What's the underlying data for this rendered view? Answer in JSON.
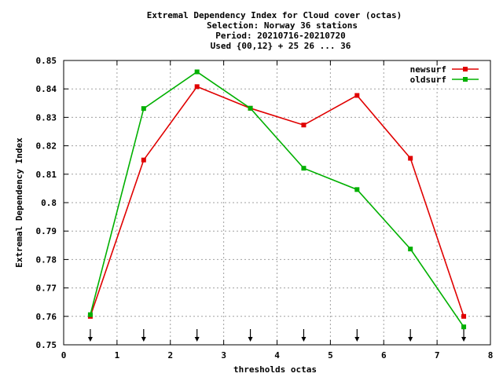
{
  "chart_data": {
    "type": "line",
    "title": [
      "Extremal Dependency Index  for Cloud cover (octas)",
      "Selection: Norway     36 stations",
      "Period: 20210716-20210720",
      "Used {00,12} + 25 26 ... 36"
    ],
    "xlabel": "thresholds octas",
    "ylabel": "Extremal Dependency Index",
    "xlim": [
      0,
      8
    ],
    "ylim": [
      0.75,
      0.85
    ],
    "x_ticks": [
      "0",
      "1",
      "2",
      "3",
      "4",
      "5",
      "6",
      "7",
      "8"
    ],
    "y_ticks": [
      "0.75",
      "0.76",
      "0.77",
      "0.78",
      "0.79",
      "0.8",
      "0.81",
      "0.82",
      "0.83",
      "0.84",
      "0.85"
    ],
    "grid": true,
    "legend_position": "top-right",
    "x": [
      0.5,
      1.5,
      2.5,
      3.5,
      4.5,
      5.5,
      6.5,
      7.5
    ],
    "threshold_markers": [
      0.5,
      1.5,
      2.5,
      3.5,
      4.5,
      5.5,
      6.5,
      7.5
    ],
    "series": [
      {
        "name": "newsurf",
        "color": "#e00000",
        "values": [
          0.76,
          0.815,
          0.8408,
          0.8332,
          0.8273,
          0.8377,
          0.8156,
          0.76
        ]
      },
      {
        "name": "oldsurf",
        "color": "#00b000",
        "values": [
          0.7606,
          0.8331,
          0.846,
          0.8332,
          0.8121,
          0.8046,
          0.7837,
          0.7563
        ]
      }
    ]
  }
}
